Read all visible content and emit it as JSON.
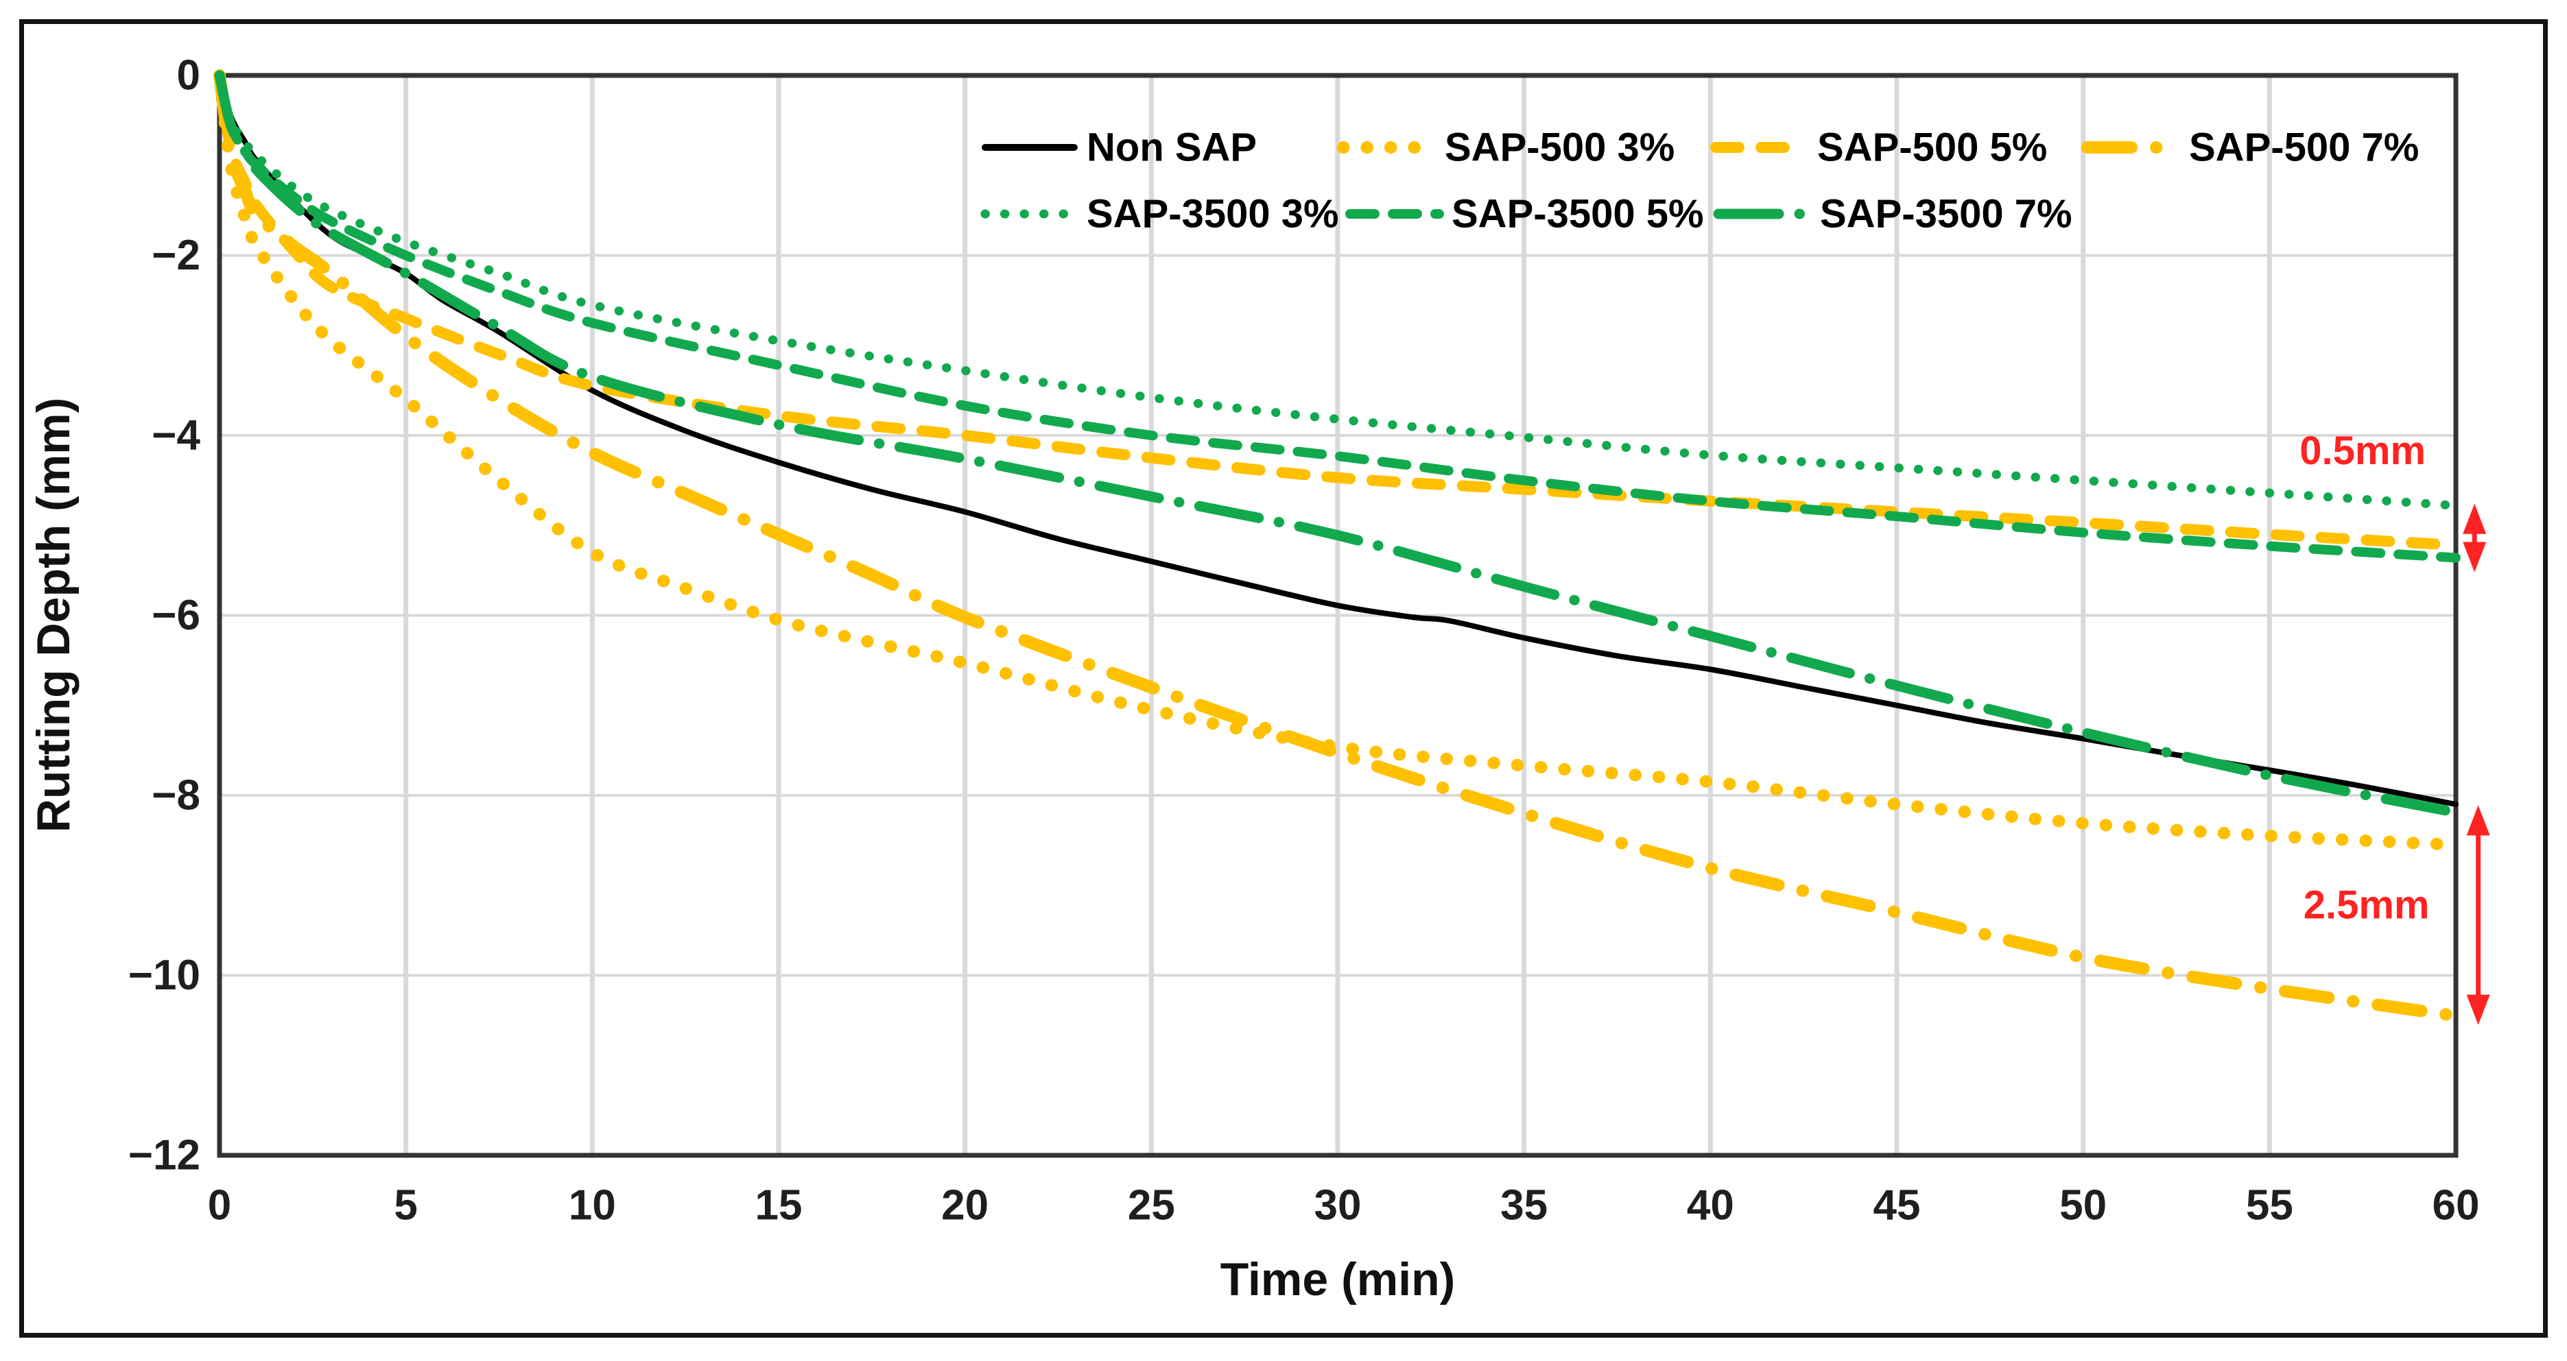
{
  "figure": {
    "background": "#ffffff",
    "frame_color": "#141414"
  },
  "chart_data": {
    "type": "line",
    "title": "",
    "xlabel": "Time (min)",
    "ylabel": "Rutting Depth (mm)",
    "xlim": [
      0,
      60
    ],
    "ylim": [
      -12,
      0
    ],
    "grid": true,
    "grid_color": "#d9d9d9",
    "axis_color": "#333333",
    "tick_color": "#1f1f1f",
    "x_ticks": {
      "values": [
        0,
        5,
        10,
        15,
        20,
        25,
        30,
        35,
        40,
        45,
        50,
        55,
        60
      ],
      "labels": [
        "0",
        "5",
        "10",
        "15",
        "20",
        "25",
        "30",
        "35",
        "40",
        "45",
        "50",
        "55",
        "60"
      ]
    },
    "y_ticks": {
      "values": [
        0,
        -2,
        -4,
        -6,
        -8,
        -10,
        -12
      ],
      "labels": [
        "0",
        "−2",
        "−4",
        "−6",
        "−8",
        "−10",
        "−12"
      ]
    },
    "legend_position": "top-inside",
    "series": [
      {
        "id": "non_sap",
        "name": "Non SAP",
        "color": "#000000",
        "dash": "solid",
        "points": [
          [
            0,
            0
          ],
          [
            0.3,
            -0.45
          ],
          [
            0.7,
            -0.75
          ],
          [
            1,
            -0.95
          ],
          [
            2,
            -1.4
          ],
          [
            3,
            -1.78
          ],
          [
            4,
            -2.0
          ],
          [
            5,
            -2.2
          ],
          [
            6,
            -2.5
          ],
          [
            7.5,
            -2.85
          ],
          [
            10,
            -3.5
          ],
          [
            12.5,
            -3.95
          ],
          [
            15,
            -4.3
          ],
          [
            17.5,
            -4.6
          ],
          [
            20,
            -4.85
          ],
          [
            22.5,
            -5.15
          ],
          [
            25,
            -5.4
          ],
          [
            27.5,
            -5.65
          ],
          [
            30,
            -5.89
          ],
          [
            32,
            -6.02
          ],
          [
            33,
            -6.06
          ],
          [
            35,
            -6.25
          ],
          [
            37.5,
            -6.45
          ],
          [
            40,
            -6.6
          ],
          [
            42.5,
            -6.8
          ],
          [
            45,
            -7.0
          ],
          [
            47.5,
            -7.2
          ],
          [
            50,
            -7.37
          ],
          [
            52.5,
            -7.55
          ],
          [
            55,
            -7.72
          ],
          [
            57.5,
            -7.9
          ],
          [
            60,
            -8.1
          ]
        ]
      },
      {
        "id": "sap500_3",
        "name": "SAP-500 3%",
        "color": "#FFC000",
        "dash": "dotted",
        "points": [
          [
            0,
            0
          ],
          [
            0.3,
            -1.0
          ],
          [
            0.7,
            -1.6
          ],
          [
            1,
            -1.9
          ],
          [
            2,
            -2.5
          ],
          [
            3,
            -2.95
          ],
          [
            5,
            -3.6
          ],
          [
            7.5,
            -4.5
          ],
          [
            10,
            -5.3
          ],
          [
            12.5,
            -5.7
          ],
          [
            15,
            -6.05
          ],
          [
            17.5,
            -6.3
          ],
          [
            20,
            -6.53
          ],
          [
            25,
            -7.05
          ],
          [
            30,
            -7.46
          ],
          [
            35,
            -7.67
          ],
          [
            40,
            -7.85
          ],
          [
            45,
            -8.1
          ],
          [
            50,
            -8.31
          ],
          [
            55,
            -8.45
          ],
          [
            60,
            -8.55
          ]
        ]
      },
      {
        "id": "sap500_5",
        "name": "SAP-500 5%",
        "color": "#FFC000",
        "dash": "dashed",
        "points": [
          [
            0,
            0
          ],
          [
            0.3,
            -0.8
          ],
          [
            0.7,
            -1.2
          ],
          [
            1,
            -1.45
          ],
          [
            2,
            -1.95
          ],
          [
            3,
            -2.35
          ],
          [
            5,
            -2.7
          ],
          [
            7.5,
            -3.1
          ],
          [
            10,
            -3.45
          ],
          [
            15,
            -3.78
          ],
          [
            20,
            -4.0
          ],
          [
            25,
            -4.25
          ],
          [
            30,
            -4.47
          ],
          [
            35,
            -4.6
          ],
          [
            40,
            -4.73
          ],
          [
            45,
            -4.85
          ],
          [
            50,
            -4.97
          ],
          [
            55,
            -5.1
          ],
          [
            60,
            -5.22
          ]
        ]
      },
      {
        "id": "sap500_7",
        "name": "SAP-500 7%",
        "color": "#FFC000",
        "dash": "dashdot",
        "points": [
          [
            0,
            0
          ],
          [
            0.3,
            -0.85
          ],
          [
            0.7,
            -1.3
          ],
          [
            1,
            -1.55
          ],
          [
            2,
            -1.9
          ],
          [
            3,
            -2.2
          ],
          [
            5,
            -2.9
          ],
          [
            7.5,
            -3.6
          ],
          [
            10,
            -4.19
          ],
          [
            12.5,
            -4.65
          ],
          [
            15,
            -5.1
          ],
          [
            17.5,
            -5.55
          ],
          [
            20,
            -6.02
          ],
          [
            25,
            -6.8
          ],
          [
            30,
            -7.53
          ],
          [
            35,
            -8.2
          ],
          [
            40,
            -8.81
          ],
          [
            45,
            -9.3
          ],
          [
            50,
            -9.8
          ],
          [
            55,
            -10.15
          ],
          [
            60,
            -10.45
          ]
        ]
      },
      {
        "id": "sap3500_3",
        "name": "SAP-3500 3%",
        "color": "#12A94E",
        "dash": "dotted",
        "points": [
          [
            0,
            0
          ],
          [
            0.3,
            -0.5
          ],
          [
            0.7,
            -0.75
          ],
          [
            1,
            -0.9
          ],
          [
            2,
            -1.25
          ],
          [
            3,
            -1.5
          ],
          [
            5,
            -1.85
          ],
          [
            7.5,
            -2.2
          ],
          [
            10,
            -2.55
          ],
          [
            15,
            -2.95
          ],
          [
            20,
            -3.28
          ],
          [
            25,
            -3.58
          ],
          [
            30,
            -3.82
          ],
          [
            35,
            -4.02
          ],
          [
            40,
            -4.22
          ],
          [
            45,
            -4.36
          ],
          [
            50,
            -4.5
          ],
          [
            55,
            -4.64
          ],
          [
            60,
            -4.78
          ]
        ]
      },
      {
        "id": "sap3500_5",
        "name": "SAP-3500 5%",
        "color": "#12A94E",
        "dash": "dashed",
        "points": [
          [
            0,
            0
          ],
          [
            0.3,
            -0.55
          ],
          [
            0.7,
            -0.85
          ],
          [
            1,
            -1.0
          ],
          [
            2,
            -1.35
          ],
          [
            3,
            -1.62
          ],
          [
            5,
            -2.0
          ],
          [
            7.5,
            -2.4
          ],
          [
            10,
            -2.75
          ],
          [
            15,
            -3.22
          ],
          [
            20,
            -3.67
          ],
          [
            25,
            -4.0
          ],
          [
            30,
            -4.23
          ],
          [
            35,
            -4.5
          ],
          [
            40,
            -4.73
          ],
          [
            45,
            -4.9
          ],
          [
            50,
            -5.08
          ],
          [
            55,
            -5.23
          ],
          [
            60,
            -5.36
          ]
        ]
      },
      {
        "id": "sap3500_7",
        "name": "SAP-3500 7%",
        "color": "#12A94E",
        "dash": "dashdot",
        "points": [
          [
            0,
            0
          ],
          [
            0.3,
            -0.55
          ],
          [
            0.7,
            -0.85
          ],
          [
            1,
            -1.05
          ],
          [
            2,
            -1.45
          ],
          [
            3,
            -1.75
          ],
          [
            5,
            -2.2
          ],
          [
            7.5,
            -2.8
          ],
          [
            10,
            -3.35
          ],
          [
            15,
            -3.88
          ],
          [
            20,
            -4.26
          ],
          [
            25,
            -4.68
          ],
          [
            30,
            -5.11
          ],
          [
            35,
            -5.68
          ],
          [
            40,
            -6.23
          ],
          [
            45,
            -6.78
          ],
          [
            50,
            -7.3
          ],
          [
            55,
            -7.78
          ],
          [
            60,
            -8.19
          ]
        ]
      }
    ],
    "legend_rows": [
      [
        "non_sap",
        "sap500_3",
        "sap500_5",
        "sap500_7"
      ],
      [
        "sap3500_3",
        "sap3500_5",
        "sap3500_7"
      ]
    ],
    "annotations": [
      {
        "label": "0.5mm",
        "color": "#FF2222",
        "text_at": {
          "x": 57.5,
          "y": -4.17
        },
        "arrow": {
          "x": 60.5,
          "y1": -4.76,
          "y2": -5.52
        }
      },
      {
        "label": "2.5mm",
        "color": "#FF2222",
        "text_at": {
          "x": 57.6,
          "y": -9.22
        },
        "arrow": {
          "x": 60.6,
          "y1": -8.11,
          "y2": -10.55
        }
      }
    ]
  }
}
